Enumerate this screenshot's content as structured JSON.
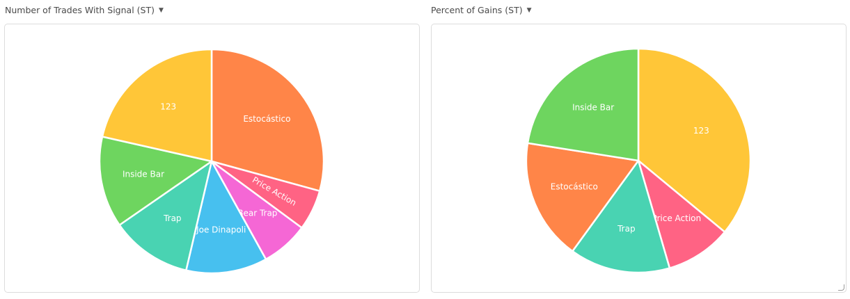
{
  "panels": [
    {
      "title": "Number of Trades With Signal (ST)",
      "caret": "▼"
    },
    {
      "title": "Percent of Gains (ST)",
      "caret": "▼"
    }
  ],
  "chart_data": [
    {
      "type": "pie",
      "start_angle_deg": 0,
      "labels": [
        "Estocástico",
        "Price Action",
        "Bear Trap",
        "Joe Dinapoli",
        "Trap",
        "Inside Bar",
        "123"
      ],
      "values": [
        30,
        6,
        7,
        12,
        12,
        13.5,
        22
      ],
      "colors": [
        "#ff8548",
        "#ff6384",
        "#f567d5",
        "#47c0ef",
        "#49d3b2",
        "#6ed55f",
        "#ffc638"
      ],
      "label_rotation": [
        0,
        30,
        0,
        0,
        0,
        0,
        0
      ]
    },
    {
      "type": "pie",
      "start_angle_deg": 0,
      "labels": [
        "123",
        "Price Action",
        "Trap",
        "Estocástico",
        "Inside Bar"
      ],
      "values": [
        36,
        9.5,
        14.5,
        17.5,
        22.5
      ],
      "colors": [
        "#ffc638",
        "#ff6384",
        "#49d3b2",
        "#ff8548",
        "#6ed55f"
      ],
      "label_rotation": [
        0,
        0,
        0,
        0,
        0
      ]
    }
  ]
}
